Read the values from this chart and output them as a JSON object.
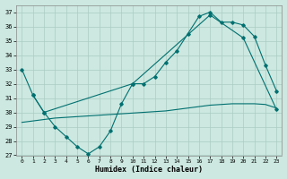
{
  "xlabel": "Humidex (Indice chaleur)",
  "background_color": "#cce8e0",
  "grid_color": "#aaccc4",
  "line_color": "#007070",
  "xlim": [
    -0.5,
    23.5
  ],
  "ylim": [
    27,
    37.5
  ],
  "yticks": [
    27,
    28,
    29,
    30,
    31,
    32,
    33,
    34,
    35,
    36,
    37
  ],
  "xticks": [
    0,
    1,
    2,
    3,
    4,
    5,
    6,
    7,
    8,
    9,
    10,
    11,
    12,
    13,
    14,
    15,
    16,
    17,
    18,
    19,
    20,
    21,
    22,
    23
  ],
  "line1_x": [
    0,
    1,
    2,
    3,
    4,
    5,
    6,
    7,
    8,
    9,
    10,
    11,
    12,
    13,
    14,
    15,
    16,
    17,
    18,
    19,
    20,
    21,
    22,
    23
  ],
  "line1_y": [
    33,
    31.2,
    30.0,
    29.0,
    28.3,
    27.6,
    27.1,
    27.6,
    28.7,
    30.6,
    32.0,
    32.0,
    32.5,
    33.5,
    34.3,
    35.5,
    36.7,
    37.0,
    36.3,
    36.3,
    36.1,
    35.3,
    33.3,
    31.5
  ],
  "line2_x": [
    1,
    2,
    10,
    17,
    20,
    23
  ],
  "line2_y": [
    31.2,
    30.0,
    32.0,
    36.8,
    35.2,
    30.2
  ],
  "line3_x": [
    0,
    1,
    2,
    3,
    4,
    5,
    6,
    7,
    8,
    9,
    10,
    11,
    12,
    13,
    14,
    15,
    16,
    17,
    18,
    19,
    20,
    21,
    22,
    23
  ],
  "line3_y": [
    29.3,
    29.4,
    29.5,
    29.6,
    29.65,
    29.7,
    29.75,
    29.8,
    29.85,
    29.9,
    29.95,
    30.0,
    30.05,
    30.1,
    30.2,
    30.3,
    30.4,
    30.5,
    30.55,
    30.6,
    30.6,
    30.6,
    30.55,
    30.3
  ]
}
